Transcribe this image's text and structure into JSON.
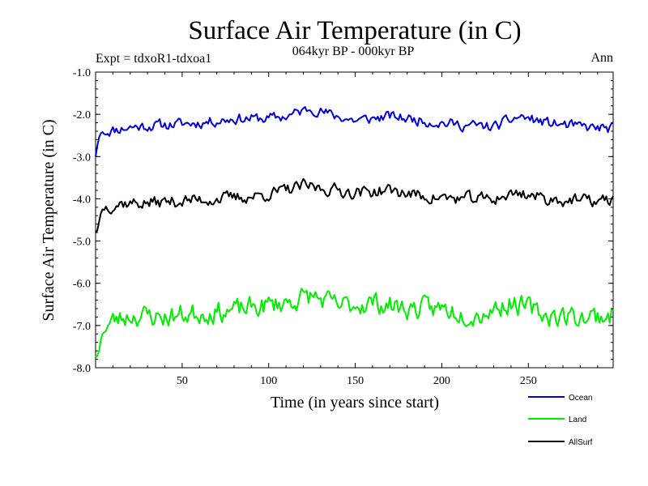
{
  "chart_data": {
    "type": "line",
    "title": "Surface Air Temperature (in C)",
    "subtitle": "064kyr BP - 000kyr BP",
    "experiment_label": "Expt = tdxoR1-tdxoa1",
    "period_label": "Ann",
    "xlabel": "Time (in years since start)",
    "ylabel": "Surface Air Temperature (in C)",
    "xlim": [
      0,
      299
    ],
    "ylim": [
      -8.0,
      -1.0
    ],
    "xticks": [
      50,
      100,
      150,
      200,
      250
    ],
    "xtick_labels": [
      "50",
      "100",
      "150",
      "200",
      "250"
    ],
    "yticks": [
      -1.0,
      -2.0,
      -3.0,
      -4.0,
      -5.0,
      -6.0,
      -7.0,
      -8.0
    ],
    "ytick_labels": [
      "-1.0",
      "-2.0",
      "-3.0",
      "-4.0",
      "-5.0",
      "-6.0",
      "-7.0",
      "-8.0"
    ],
    "series": [
      {
        "name": "Ocean",
        "color": "#0000dd",
        "start": [
          -3.0,
          -2.75,
          -2.55,
          -2.45,
          -2.42
        ],
        "anchors": [
          [
            0,
            -2.45
          ],
          [
            20,
            -2.3
          ],
          [
            40,
            -2.25
          ],
          [
            60,
            -2.2
          ],
          [
            80,
            -2.1
          ],
          [
            100,
            -2.1
          ],
          [
            110,
            -2.05
          ],
          [
            125,
            -1.85
          ],
          [
            135,
            -2.0
          ],
          [
            150,
            -2.15
          ],
          [
            170,
            -2.05
          ],
          [
            190,
            -2.15
          ],
          [
            210,
            -2.25
          ],
          [
            230,
            -2.3
          ],
          [
            245,
            -2.05
          ],
          [
            260,
            -2.2
          ],
          [
            280,
            -2.3
          ],
          [
            299,
            -2.35
          ]
        ],
        "noise": 0.11,
        "seed": 11
      },
      {
        "name": "Land",
        "color": "#00ee00",
        "start": [
          -7.75,
          -7.72,
          -7.6,
          -7.35,
          -7.2
        ],
        "anchors": [
          [
            0,
            -7.2
          ],
          [
            10,
            -6.9
          ],
          [
            20,
            -6.75
          ],
          [
            40,
            -6.8
          ],
          [
            60,
            -6.7
          ],
          [
            80,
            -6.65
          ],
          [
            95,
            -6.55
          ],
          [
            110,
            -6.45
          ],
          [
            125,
            -6.3
          ],
          [
            140,
            -6.55
          ],
          [
            160,
            -6.45
          ],
          [
            180,
            -6.6
          ],
          [
            200,
            -6.6
          ],
          [
            220,
            -6.75
          ],
          [
            240,
            -6.45
          ],
          [
            260,
            -6.75
          ],
          [
            280,
            -6.8
          ],
          [
            299,
            -6.75
          ]
        ],
        "noise": 0.22,
        "seed": 23
      },
      {
        "name": "AllSurf",
        "color": "#000000",
        "start": [
          -4.8,
          -4.75,
          -4.55,
          -4.35,
          -4.25
        ],
        "anchors": [
          [
            0,
            -4.25
          ],
          [
            15,
            -4.1
          ],
          [
            30,
            -4.1
          ],
          [
            50,
            -4.05
          ],
          [
            70,
            -4.0
          ],
          [
            90,
            -3.95
          ],
          [
            105,
            -3.85
          ],
          [
            120,
            -3.7
          ],
          [
            130,
            -3.75
          ],
          [
            150,
            -3.85
          ],
          [
            170,
            -3.8
          ],
          [
            190,
            -3.95
          ],
          [
            210,
            -4.0
          ],
          [
            230,
            -4.0
          ],
          [
            245,
            -3.85
          ],
          [
            260,
            -4.0
          ],
          [
            280,
            -4.05
          ],
          [
            299,
            -4.05
          ]
        ],
        "noise": 0.13,
        "seed": 37
      }
    ],
    "legend_position": "bottom-right"
  }
}
